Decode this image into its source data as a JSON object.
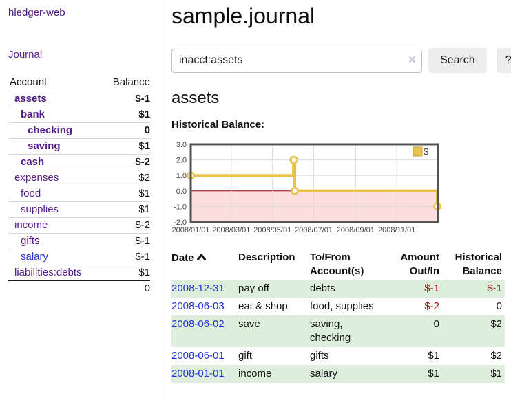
{
  "app": {
    "brand": "hledger-web",
    "nav_journal": "Journal"
  },
  "sidebar": {
    "header": {
      "account": "Account",
      "balance": "Balance"
    },
    "accounts": [
      {
        "name": "assets",
        "balance": "$-1"
      },
      {
        "name": "bank",
        "balance": "$1"
      },
      {
        "name": "checking",
        "balance": "0"
      },
      {
        "name": "saving",
        "balance": "$1"
      },
      {
        "name": "cash",
        "balance": "$-2"
      },
      {
        "name": "expenses",
        "balance": "$2"
      },
      {
        "name": "food",
        "balance": "$1"
      },
      {
        "name": "supplies",
        "balance": "$1"
      },
      {
        "name": "income",
        "balance": "$-2"
      },
      {
        "name": "gifts",
        "balance": "$-1"
      },
      {
        "name": "salary",
        "balance": "$-1"
      },
      {
        "name": "liabilities:debts",
        "balance": "$1"
      }
    ],
    "total": "0"
  },
  "header": {
    "title": "sample.journal"
  },
  "search": {
    "value": "inacct:assets",
    "clear_icon": "×",
    "button_label": "Search",
    "help_label": "?"
  },
  "account_page": {
    "title": "assets",
    "chart_label": "Historical Balance:"
  },
  "chart_data": {
    "type": "line",
    "subtype": "step-after",
    "title": "Historical Balance",
    "legend_label": "$",
    "legend_position": "top-right",
    "grid": true,
    "x_start": "2008-01-01",
    "x_end": "2009-01-01",
    "ylim": [
      -2,
      3
    ],
    "yticks": [
      3,
      2,
      1,
      0,
      -1,
      -2
    ],
    "xticks": [
      {
        "label": "2008/01/01",
        "date": "2008-01-01"
      },
      {
        "label": "2008/03/01",
        "date": "2008-03-01"
      },
      {
        "label": "2008/05/01",
        "date": "2008-05-01"
      },
      {
        "label": "2008/07/01",
        "date": "2008-07-01"
      },
      {
        "label": "2008/09/01",
        "date": "2008-09-01"
      },
      {
        "label": "2008/11/01",
        "date": "2008-11-01"
      }
    ],
    "points": [
      [
        "2008-01-01",
        1
      ],
      [
        "2008-06-01",
        2
      ],
      [
        "2008-06-02",
        2
      ],
      [
        "2008-06-03",
        0
      ],
      [
        "2008-12-31",
        -1
      ]
    ],
    "colors": {
      "line": "#e8c24a",
      "marker_fill": "#ffffff",
      "negative_region": "#fcdede",
      "zero_line": "#8b0000",
      "grid": "#dcdcdc",
      "border": "#545454",
      "legend_box_border": "#c9a52f",
      "tick_text": "#444444"
    }
  },
  "register": {
    "columns": {
      "date": "Date",
      "description": "Description",
      "accounts": "To/From Account(s)",
      "amount": "Amount Out/In",
      "balance": "Historical Balance"
    },
    "rows": [
      {
        "date": "2008-12-31",
        "description": "pay off",
        "accounts": "debts",
        "amount": "$-1",
        "balance": "$-1"
      },
      {
        "date": "2008-06-03",
        "description": "eat & shop",
        "accounts": "food, supplies",
        "amount": "$-2",
        "balance": "0"
      },
      {
        "date": "2008-06-02",
        "description": "save",
        "accounts": "saving, checking",
        "amount": "0",
        "balance": "$2"
      },
      {
        "date": "2008-06-01",
        "description": "gift",
        "accounts": "gifts",
        "amount": "$1",
        "balance": "$2"
      },
      {
        "date": "2008-01-01",
        "description": "income",
        "accounts": "salary",
        "amount": "$1",
        "balance": "$1"
      }
    ]
  }
}
